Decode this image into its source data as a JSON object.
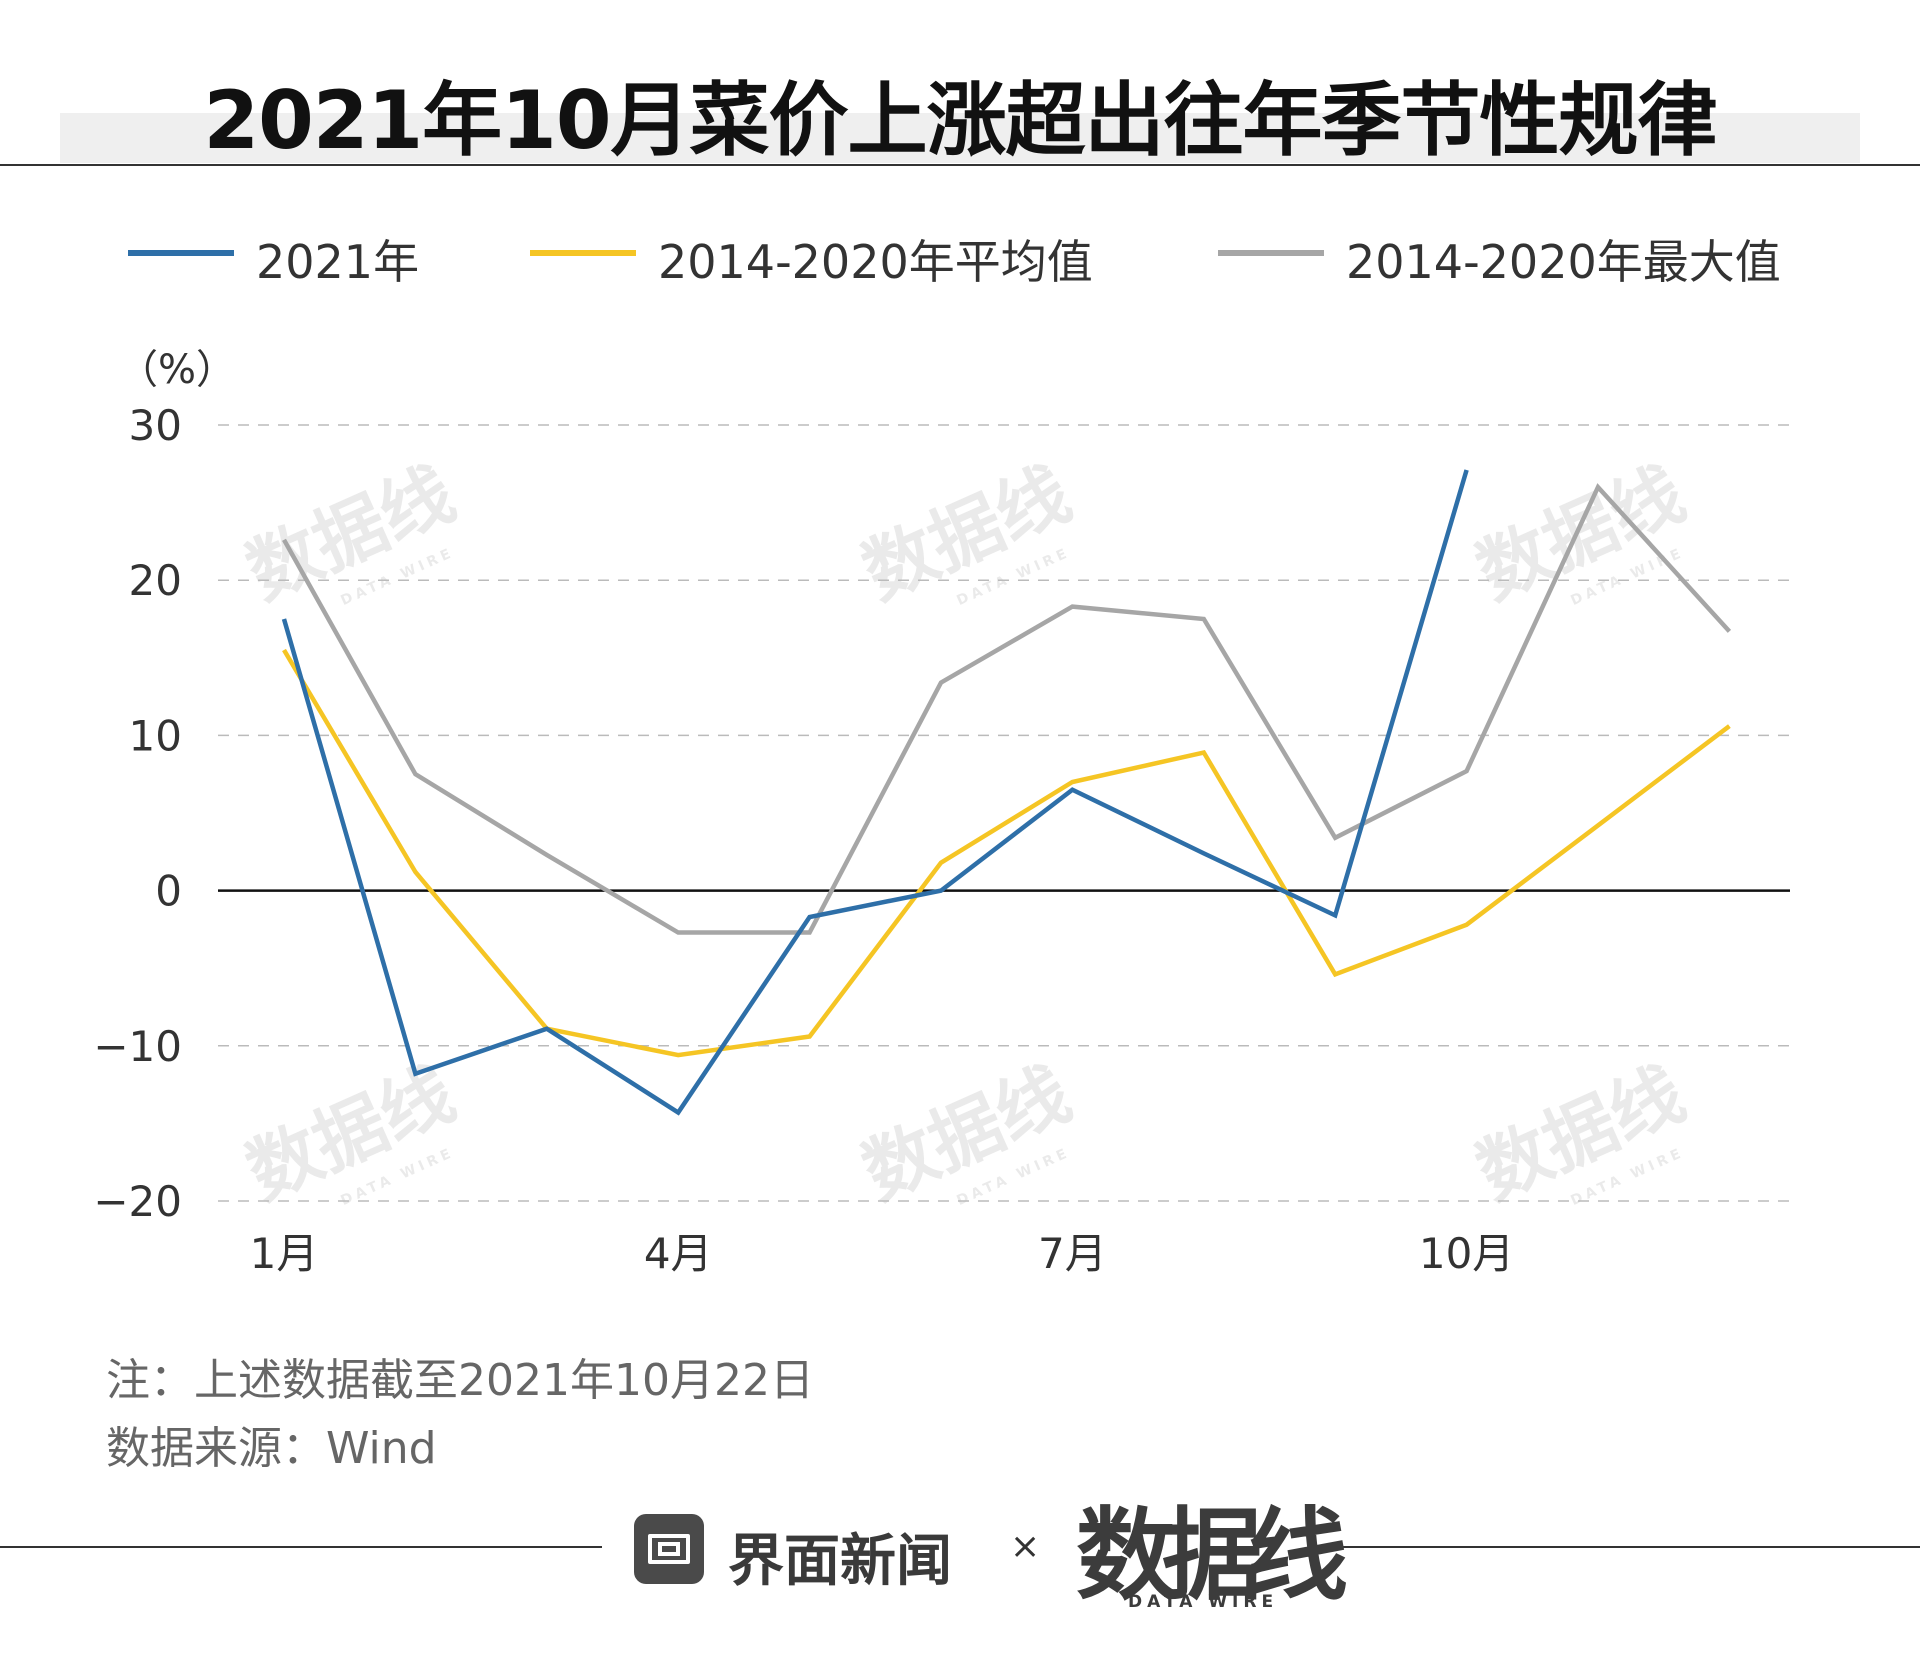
{
  "title": "2021年10月菜价上涨超出往年季节性规律",
  "notes": {
    "cutoff": "注：上述数据截至2021年10月22日",
    "source": "数据来源：Wind"
  },
  "brand": {
    "name": "界面新闻",
    "separator": "×",
    "partner": "数据线",
    "partner_sub": "DATA WIRE"
  },
  "watermark": {
    "text": "数据线",
    "sub": "DATA WIRE"
  },
  "chart_data": {
    "type": "line",
    "unit_label": "（%）",
    "x": [
      1,
      2,
      3,
      4,
      5,
      6,
      7,
      8,
      9,
      10,
      11,
      12
    ],
    "x_tick_values": [
      1,
      4,
      7,
      10
    ],
    "x_tick_labels": [
      "1月",
      "4月",
      "7月",
      "10月"
    ],
    "ylim": [
      -20,
      30
    ],
    "y_ticks": [
      30,
      20,
      10,
      0,
      -10,
      -20
    ],
    "y_tick_labels": [
      "30",
      "20",
      "10",
      "0",
      "−10",
      "−20"
    ],
    "grid": "horizontal-dashed",
    "zero_line": true,
    "legend_position": "top",
    "series": [
      {
        "name": "2021年",
        "color": "#2e6fa8",
        "values": [
          17.5,
          -11.8,
          -8.9,
          -14.3,
          -1.7,
          0.0,
          6.5,
          2.4,
          -1.6,
          27.1,
          null,
          null
        ]
      },
      {
        "name": "2014-2020年平均值",
        "color": "#f5c524",
        "values": [
          15.5,
          1.2,
          -8.9,
          -10.6,
          -9.4,
          1.8,
          7.0,
          8.9,
          -5.4,
          -2.2,
          4.2,
          10.6
        ]
      },
      {
        "name": "2014-2020年最大值",
        "color": "#a6a6a6",
        "values": [
          22.6,
          7.5,
          2.3,
          -2.7,
          -2.7,
          13.4,
          18.3,
          17.5,
          3.4,
          7.7,
          26.0,
          16.7
        ]
      }
    ]
  }
}
